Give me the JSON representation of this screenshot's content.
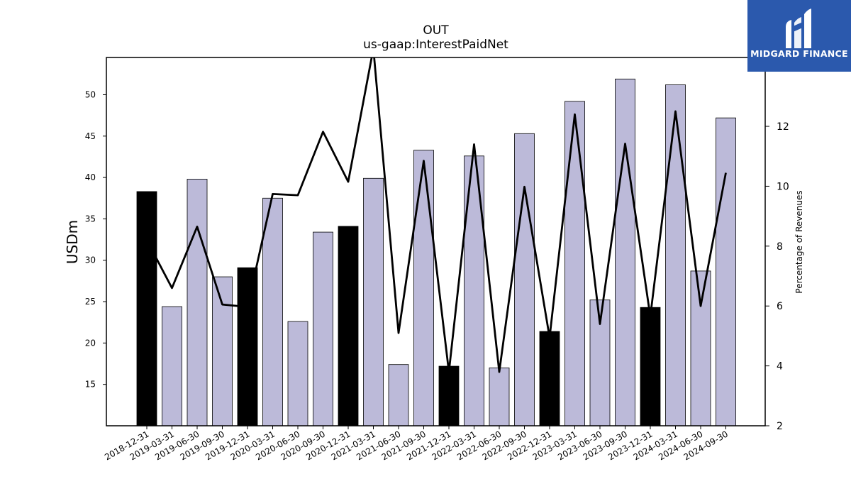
{
  "chart_data": {
    "type": "bar",
    "title": "OUT",
    "subtitle": "us-gaap:InterestPaidNet",
    "ylabel": "USDm",
    "y2label": "Percentage of Revenues",
    "ylim": [
      10,
      54.5
    ],
    "y2lim": [
      2,
      14.3
    ],
    "yticks": [
      15,
      20,
      25,
      30,
      35,
      40,
      45,
      50
    ],
    "y2ticks": [
      2,
      4,
      6,
      8,
      10,
      12
    ],
    "grid": false,
    "categories": [
      "2018-12-31",
      "2019-03-31",
      "2019-06-30",
      "2019-09-30",
      "2019-12-31",
      "2020-03-31",
      "2020-06-30",
      "2020-09-30",
      "2020-12-31",
      "2021-03-31",
      "2021-06-30",
      "2021-09-30",
      "2021-12-31",
      "2022-03-31",
      "2022-06-30",
      "2022-09-30",
      "2022-12-31",
      "2023-03-31",
      "2023-06-30",
      "2023-09-30",
      "2023-12-31",
      "2024-03-31",
      "2024-06-30",
      "2024-09-30"
    ],
    "series": [
      {
        "kind": "bar",
        "values": [
          38.3,
          24.4,
          39.8,
          28.0,
          29.1,
          37.5,
          22.6,
          33.4,
          34.1,
          39.9,
          17.4,
          43.3,
          17.2,
          42.6,
          17.0,
          45.3,
          21.4,
          49.2,
          25.2,
          51.9,
          24.3,
          51.2,
          28.7,
          47.2
        ],
        "highlight": [
          true,
          false,
          false,
          false,
          true,
          false,
          false,
          false,
          true,
          false,
          false,
          false,
          true,
          false,
          false,
          false,
          true,
          false,
          false,
          false,
          true,
          false,
          false,
          false
        ]
      },
      {
        "kind": "line",
        "axis": "right",
        "values": [
          8.2,
          6.6,
          8.65,
          6.05,
          5.97,
          9.74,
          9.7,
          11.82,
          10.15,
          14.6,
          5.1,
          10.85,
          3.8,
          11.4,
          3.8,
          9.98,
          4.95,
          12.4,
          5.4,
          11.42,
          5.65,
          12.5,
          6.0,
          10.45
        ]
      }
    ]
  },
  "colors": {
    "bar_default": "#bcbad9",
    "bar_highlight": "#000000",
    "line": "#000000",
    "logo_bg": "#2b59ad"
  },
  "logo": {
    "text": "MIDGARD FINANCE",
    "icon": "midgard-logo-icon"
  }
}
